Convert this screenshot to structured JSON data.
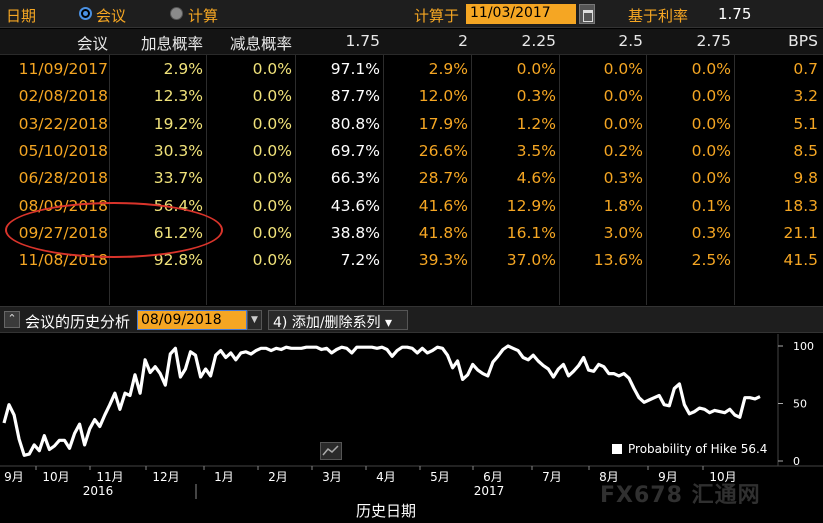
{
  "topbar": {
    "date_label": "日期",
    "radio_meeting": "会议",
    "radio_calc": "计算",
    "calc_label": "计算于",
    "calc_date": "11/03/2017",
    "base_rate_label": "基于利率",
    "base_rate_value": "1.75"
  },
  "table": {
    "headers": [
      "会议",
      "加息概率",
      "减息概率",
      "1.75",
      "2",
      "2.25",
      "2.5",
      "2.75",
      "BPS"
    ],
    "rows": [
      [
        "11/09/2017",
        "2.9%",
        "0.0%",
        "97.1%",
        "2.9%",
        "0.0%",
        "0.0%",
        "0.0%",
        "0.7"
      ],
      [
        "02/08/2018",
        "12.3%",
        "0.0%",
        "87.7%",
        "12.0%",
        "0.3%",
        "0.0%",
        "0.0%",
        "3.2"
      ],
      [
        "03/22/2018",
        "19.2%",
        "0.0%",
        "80.8%",
        "17.9%",
        "1.2%",
        "0.0%",
        "0.0%",
        "5.1"
      ],
      [
        "05/10/2018",
        "30.3%",
        "0.0%",
        "69.7%",
        "26.6%",
        "3.5%",
        "0.2%",
        "0.0%",
        "8.5"
      ],
      [
        "06/28/2018",
        "33.7%",
        "0.0%",
        "66.3%",
        "28.7%",
        "4.6%",
        "0.3%",
        "0.0%",
        "9.8"
      ],
      [
        "08/09/2018",
        "56.4%",
        "0.0%",
        "43.6%",
        "41.6%",
        "12.9%",
        "1.8%",
        "0.1%",
        "18.3"
      ],
      [
        "09/27/2018",
        "61.2%",
        "0.0%",
        "38.8%",
        "41.8%",
        "16.1%",
        "3.0%",
        "0.3%",
        "21.1"
      ],
      [
        "11/08/2018",
        "92.8%",
        "0.0%",
        "7.2%",
        "39.3%",
        "37.0%",
        "13.6%",
        "2.5%",
        "41.5"
      ]
    ]
  },
  "section": {
    "collapse_icon": "double-chevron-up-icon",
    "title": "会议的历史分析",
    "date": "08/09/2018",
    "add_series": "添加/删除系列",
    "dropdown_glyph": "▼",
    "add_glyph": "▾",
    "add_icon": "4)"
  },
  "chart_data": {
    "type": "line",
    "series": [
      {
        "name": "Probability of Hike",
        "last_value": 56.4,
        "points": [
          [
            0,
            33
          ],
          [
            1,
            49
          ],
          [
            2,
            40
          ],
          [
            3,
            19
          ],
          [
            4,
            5
          ],
          [
            5,
            6
          ],
          [
            6,
            14
          ],
          [
            7,
            9
          ],
          [
            8,
            22
          ],
          [
            9,
            10
          ],
          [
            10,
            13
          ],
          [
            11,
            18
          ],
          [
            12,
            18
          ],
          [
            13,
            11
          ],
          [
            14,
            24
          ],
          [
            15,
            32
          ],
          [
            16,
            14
          ],
          [
            17,
            28
          ],
          [
            18,
            36
          ],
          [
            19,
            30
          ],
          [
            20,
            40
          ],
          [
            21,
            49
          ],
          [
            22,
            59
          ],
          [
            23,
            45
          ],
          [
            24,
            59
          ],
          [
            25,
            57
          ],
          [
            26,
            75
          ],
          [
            27,
            59
          ],
          [
            28,
            88
          ],
          [
            29,
            77
          ],
          [
            30,
            82
          ],
          [
            31,
            76
          ],
          [
            32,
            66
          ],
          [
            33,
            93
          ],
          [
            34,
            98
          ],
          [
            35,
            73
          ],
          [
            36,
            80
          ],
          [
            37,
            95
          ],
          [
            38,
            92
          ],
          [
            39,
            73
          ],
          [
            40,
            80
          ],
          [
            41,
            74
          ],
          [
            42,
            92
          ],
          [
            43,
            96
          ],
          [
            44,
            90
          ],
          [
            45,
            94
          ],
          [
            46,
            88
          ],
          [
            47,
            94
          ],
          [
            48,
            95
          ],
          [
            49,
            93
          ],
          [
            50,
            96
          ],
          [
            51,
            98
          ],
          [
            52,
            98
          ],
          [
            53,
            96
          ],
          [
            54,
            98
          ],
          [
            55,
            97
          ],
          [
            56,
            99
          ],
          [
            57,
            98
          ],
          [
            58,
            98
          ],
          [
            59,
            98
          ],
          [
            60,
            99
          ],
          [
            61,
            99
          ],
          [
            62,
            99
          ],
          [
            63,
            97
          ],
          [
            64,
            98
          ],
          [
            65,
            94
          ],
          [
            66,
            97
          ],
          [
            67,
            99
          ],
          [
            68,
            98
          ],
          [
            69,
            94
          ],
          [
            70,
            99
          ],
          [
            71,
            99
          ],
          [
            72,
            99
          ],
          [
            73,
            99
          ],
          [
            74,
            98
          ],
          [
            75,
            99
          ],
          [
            76,
            97
          ],
          [
            77,
            91
          ],
          [
            78,
            96
          ],
          [
            79,
            99
          ],
          [
            80,
            99
          ],
          [
            81,
            98
          ],
          [
            82,
            94
          ],
          [
            83,
            98
          ],
          [
            84,
            94
          ],
          [
            85,
            96
          ],
          [
            86,
            99
          ],
          [
            87,
            98
          ],
          [
            88,
            92
          ],
          [
            89,
            81
          ],
          [
            90,
            87
          ],
          [
            91,
            71
          ],
          [
            92,
            75
          ],
          [
            93,
            84
          ],
          [
            94,
            79
          ],
          [
            95,
            76
          ],
          [
            96,
            74
          ],
          [
            97,
            86
          ],
          [
            98,
            91
          ],
          [
            99,
            97
          ],
          [
            100,
            100
          ],
          [
            101,
            98
          ],
          [
            102,
            96
          ],
          [
            103,
            90
          ],
          [
            104,
            88
          ],
          [
            105,
            92
          ],
          [
            106,
            87
          ],
          [
            107,
            83
          ],
          [
            108,
            80
          ],
          [
            109,
            73
          ],
          [
            110,
            80
          ],
          [
            111,
            84
          ],
          [
            112,
            74
          ],
          [
            113,
            78
          ],
          [
            114,
            83
          ],
          [
            115,
            90
          ],
          [
            116,
            79
          ],
          [
            117,
            78
          ],
          [
            118,
            84
          ],
          [
            119,
            82
          ],
          [
            120,
            76
          ],
          [
            121,
            76
          ],
          [
            122,
            74
          ],
          [
            123,
            76
          ],
          [
            124,
            72
          ],
          [
            125,
            63
          ],
          [
            126,
            55
          ],
          [
            127,
            51
          ],
          [
            128,
            53
          ],
          [
            129,
            55
          ],
          [
            130,
            57
          ],
          [
            131,
            49
          ],
          [
            132,
            48
          ],
          [
            133,
            63
          ],
          [
            134,
            67
          ],
          [
            135,
            49
          ],
          [
            136,
            41
          ],
          [
            137,
            43
          ],
          [
            138,
            46
          ],
          [
            139,
            45
          ],
          [
            140,
            42
          ],
          [
            141,
            44
          ],
          [
            142,
            43
          ],
          [
            143,
            42
          ],
          [
            144,
            45
          ],
          [
            145,
            40
          ],
          [
            146,
            38
          ],
          [
            147,
            55
          ],
          [
            148,
            55
          ],
          [
            149,
            54
          ],
          [
            150,
            56
          ]
        ]
      }
    ],
    "x_tick_labels": [
      "9月",
      "10月",
      "11月",
      "12月",
      "1月",
      "2月",
      "3月",
      "4月",
      "5月",
      "6月",
      "7月",
      "8月",
      "9月",
      "10月"
    ],
    "x_year_labels": [
      "2016",
      "2017"
    ],
    "xlabel": "历史日期",
    "ylim": [
      0,
      100
    ],
    "y_ticks": [
      "100",
      "50",
      "0"
    ],
    "legend_placement": "bottom-right",
    "line_color": "#ffffff",
    "chart_icon": "line-chart-icon"
  },
  "watermark": "FX678 汇通网",
  "colors": {
    "accent_orange": "#f5a623",
    "hike_yellow": "#f0e27a",
    "highlight_ellipse": "#d9342b"
  }
}
